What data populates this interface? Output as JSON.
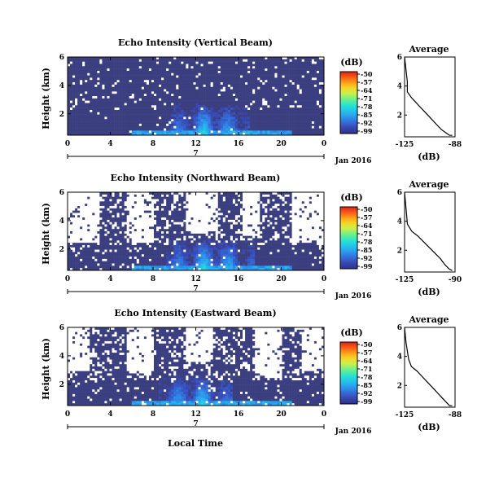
{
  "figure": {
    "xlabel": "Local Time",
    "date_label": "Jan 2016",
    "day_label": "7",
    "ylabel": "Height (km)",
    "colorbar_unit": "(dB)",
    "colorbar_ticks": [
      "-50",
      "-57",
      "-64",
      "-71",
      "-78",
      "-85",
      "-92",
      "-99"
    ],
    "avg_title": "Average",
    "avg_xlabel": "(dB)",
    "colormap": [
      "#2c2f8a",
      "#3a4db8",
      "#2f7fe6",
      "#26b7f0",
      "#22e0d8",
      "#6df08a",
      "#d8f040",
      "#ffc21e",
      "#ff6a14",
      "#e0201a"
    ],
    "background_color": "#3b3f80",
    "no_data_color": "#ffffff"
  },
  "chart_data": [
    {
      "type": "heatmap",
      "title": "Echo Intensity (Vertical Beam)",
      "xlabel": "",
      "ylabel": "Height (km)",
      "x_ticks": [
        "0",
        "4",
        "8",
        "12",
        "16",
        "20",
        "0"
      ],
      "y_ticks": [
        "2",
        "4",
        "6"
      ],
      "xlim": [
        0,
        24
      ],
      "ylim": [
        0.5,
        6
      ],
      "clim": [
        -99,
        -50
      ],
      "enhanced_echo": {
        "x_start": 9.5,
        "x_end": 17,
        "top_km": 2.8,
        "peak_db": -78
      },
      "missing_fraction": 0.08,
      "seed": 11
    },
    {
      "type": "heatmap",
      "title": "Echo Intensity (Northward Beam)",
      "xlabel": "",
      "ylabel": "Height (km)",
      "x_ticks": [
        "0",
        "4",
        "8",
        "12",
        "16",
        "20",
        "0"
      ],
      "y_ticks": [
        "2",
        "4",
        "6"
      ],
      "xlim": [
        0,
        24
      ],
      "ylim": [
        0.5,
        6
      ],
      "clim": [
        -99,
        -50
      ],
      "enhanced_echo": {
        "x_start": 9,
        "x_end": 17.5,
        "top_km": 2.8,
        "peak_db": -78
      },
      "missing_fraction": 0.22,
      "missing_blocks": [
        [
          0,
          3,
          2.5,
          6
        ],
        [
          5.5,
          8,
          2.5,
          6
        ],
        [
          11,
          14,
          3.2,
          6
        ],
        [
          16.5,
          18,
          3.0,
          6
        ],
        [
          21,
          24,
          2.5,
          6
        ]
      ],
      "seed": 23
    },
    {
      "type": "heatmap",
      "title": "Echo Intensity (Eastward Beam)",
      "xlabel": "Local Time",
      "ylabel": "Height (km)",
      "x_ticks": [
        "0",
        "4",
        "8",
        "12",
        "16",
        "20",
        "0"
      ],
      "y_ticks": [
        "2",
        "4",
        "6"
      ],
      "xlim": [
        0,
        24
      ],
      "ylim": [
        0.5,
        6
      ],
      "clim": [
        -99,
        -50
      ],
      "enhanced_echo": {
        "x_start": 8.5,
        "x_end": 15.5,
        "top_km": 2.7,
        "peak_db": -78
      },
      "missing_fraction": 0.25,
      "missing_blocks": [
        [
          0,
          2,
          3.0,
          6
        ],
        [
          5.5,
          8,
          2.8,
          6
        ],
        [
          11,
          13.5,
          3.5,
          6
        ],
        [
          17.5,
          20,
          2.5,
          6
        ],
        [
          22,
          24,
          3.0,
          6
        ]
      ],
      "seed": 37
    },
    {
      "type": "line",
      "title": "Average",
      "xlabel": "(dB)",
      "x_ticks": [
        "-125",
        "-88"
      ],
      "y_ticks": [
        "2",
        "4",
        "6"
      ],
      "xlim": [
        -125,
        -88
      ],
      "ylim": [
        0.5,
        6
      ],
      "x": [
        -125,
        -123,
        -123,
        -120,
        -117,
        -114,
        -110,
        -106,
        -102,
        -98,
        -95,
        -92,
        -90
      ],
      "y": [
        6,
        4.3,
        3.6,
        3.2,
        2.9,
        2.6,
        2.2,
        1.8,
        1.4,
        1.0,
        0.8,
        0.6,
        0.6
      ]
    },
    {
      "type": "line",
      "title": "Average",
      "xlabel": "(dB)",
      "x_ticks": [
        "-125",
        "-90"
      ],
      "y_ticks": [
        "2",
        "4",
        "6"
      ],
      "xlim": [
        -125,
        -90
      ],
      "ylim": [
        0.5,
        6
      ],
      "x": [
        -125,
        -123,
        -120,
        -116,
        -112,
        -108,
        -104,
        -100,
        -97,
        -94,
        -92
      ],
      "y": [
        6,
        3.8,
        3.3,
        3.0,
        2.6,
        2.2,
        1.8,
        1.4,
        1.0,
        0.7,
        0.6
      ]
    },
    {
      "type": "line",
      "title": "Average",
      "xlabel": "(dB)",
      "x_ticks": [
        "-125",
        "-88"
      ],
      "y_ticks": [
        "2",
        "4",
        "6"
      ],
      "xlim": [
        -125,
        -88
      ],
      "ylim": [
        0.5,
        6
      ],
      "x": [
        -125,
        -124,
        -122,
        -120,
        -116,
        -112,
        -108,
        -104,
        -100,
        -97,
        -94,
        -92,
        -90
      ],
      "y": [
        6,
        5.0,
        3.8,
        3.3,
        3.0,
        2.6,
        2.2,
        1.8,
        1.4,
        1.1,
        0.8,
        0.6,
        0.6
      ]
    }
  ]
}
